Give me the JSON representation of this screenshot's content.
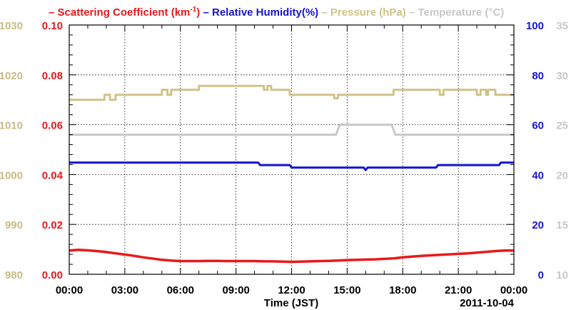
{
  "chart_data": {
    "type": "line",
    "legend": [
      {
        "key": "scat",
        "text": "Scattering Coefficient (km",
        "sup": "-1",
        "tail": ")",
        "color": "#e8191b"
      },
      {
        "key": "rh",
        "text": "Relative Humidity(%)",
        "color": "#1515d0"
      },
      {
        "key": "pres",
        "text": "Pressure (hPa)",
        "color": "#cfc38a"
      },
      {
        "key": "temp",
        "text": "Temperature (°C)",
        "color": "#c8c8c8"
      }
    ],
    "legend_dash": "–",
    "xlabel": "Time (JST)",
    "date_label": "2011-10-04",
    "x_ticks": [
      "00:00",
      "03:00",
      "06:00",
      "09:00",
      "12:00",
      "15:00",
      "18:00",
      "21:00",
      "00:00"
    ],
    "x_range_hours": [
      0,
      24
    ],
    "axes": {
      "pressure": {
        "range": [
          980,
          1030
        ],
        "ticks": [
          "980",
          "990",
          "1000",
          "1010",
          "1020",
          "1030"
        ],
        "color": "#c8bc84",
        "position": "outer-left"
      },
      "scattering": {
        "range": [
          0,
          0.1
        ],
        "ticks": [
          "0.00",
          "0.02",
          "0.04",
          "0.06",
          "0.08",
          "0.10"
        ],
        "color": "#e8191b",
        "position": "left"
      },
      "humidity": {
        "range": [
          0,
          100
        ],
        "ticks": [
          "0",
          "20",
          "40",
          "60",
          "80",
          "100"
        ],
        "color": "#1515d0",
        "position": "right"
      },
      "temperature": {
        "range": [
          10,
          35
        ],
        "ticks": [
          "10",
          "15",
          "20",
          "25",
          "30",
          "35"
        ],
        "color": "#c8c8c8",
        "position": "outer-right"
      }
    },
    "grid": true,
    "series": [
      {
        "name": "Pressure (hPa)",
        "axis": "pressure",
        "color": "#cfc38a",
        "points": [
          [
            0,
            1015
          ],
          [
            1.9,
            1015
          ],
          [
            1.9,
            1016
          ],
          [
            2.2,
            1016
          ],
          [
            2.2,
            1015
          ],
          [
            2.5,
            1015
          ],
          [
            2.5,
            1016
          ],
          [
            5.0,
            1016
          ],
          [
            5.0,
            1017
          ],
          [
            5.3,
            1017
          ],
          [
            5.3,
            1016
          ],
          [
            5.5,
            1016
          ],
          [
            5.5,
            1017
          ],
          [
            7.0,
            1017
          ],
          [
            7.0,
            1017.8
          ],
          [
            10.5,
            1017.8
          ],
          [
            10.5,
            1017
          ],
          [
            10.7,
            1017
          ],
          [
            10.7,
            1017.8
          ],
          [
            10.9,
            1017.8
          ],
          [
            10.9,
            1017
          ],
          [
            11.9,
            1017
          ],
          [
            11.9,
            1016
          ],
          [
            14.3,
            1016
          ],
          [
            14.3,
            1015.3
          ],
          [
            14.5,
            1015.3
          ],
          [
            14.5,
            1016
          ],
          [
            17.5,
            1016
          ],
          [
            17.5,
            1017
          ],
          [
            20.0,
            1017
          ],
          [
            20.0,
            1016
          ],
          [
            20.2,
            1016
          ],
          [
            20.2,
            1017
          ],
          [
            22.0,
            1017
          ],
          [
            22.0,
            1016
          ],
          [
            22.2,
            1016
          ],
          [
            22.2,
            1017
          ],
          [
            22.5,
            1017
          ],
          [
            22.5,
            1016
          ],
          [
            22.6,
            1016
          ],
          [
            22.6,
            1017
          ],
          [
            23.0,
            1017
          ],
          [
            23.0,
            1016
          ],
          [
            24,
            1016
          ]
        ]
      },
      {
        "name": "Temperature (°C)",
        "axis": "temperature",
        "color": "#c8c8c8",
        "points": [
          [
            0,
            24
          ],
          [
            14.4,
            24
          ],
          [
            14.6,
            25
          ],
          [
            17.4,
            25
          ],
          [
            17.6,
            24
          ],
          [
            24,
            24
          ]
        ]
      },
      {
        "name": "Relative Humidity(%)",
        "axis": "humidity",
        "color": "#1515d0",
        "points": [
          [
            0,
            44.8
          ],
          [
            10.2,
            44.8
          ],
          [
            10.3,
            43.8
          ],
          [
            11.9,
            43.8
          ],
          [
            12.0,
            42.8
          ],
          [
            15.9,
            42.8
          ],
          [
            16.0,
            41.8
          ],
          [
            16.1,
            42.8
          ],
          [
            19.8,
            42.8
          ],
          [
            19.9,
            43.8
          ],
          [
            23.2,
            43.8
          ],
          [
            23.3,
            44.8
          ],
          [
            24,
            44.8
          ]
        ]
      },
      {
        "name": "Scattering Coefficient",
        "axis": "scattering",
        "color": "#e8191b",
        "points": [
          [
            0,
            0.0095
          ],
          [
            0.5,
            0.0098
          ],
          [
            1,
            0.0096
          ],
          [
            1.5,
            0.0093
          ],
          [
            2,
            0.0089
          ],
          [
            2.5,
            0.0084
          ],
          [
            3,
            0.0079
          ],
          [
            3.5,
            0.0074
          ],
          [
            4,
            0.0068
          ],
          [
            4.5,
            0.0063
          ],
          [
            5,
            0.0058
          ],
          [
            5.5,
            0.0055
          ],
          [
            6,
            0.0053
          ],
          [
            6.5,
            0.0053
          ],
          [
            7,
            0.0053
          ],
          [
            7.5,
            0.0054
          ],
          [
            8,
            0.0054
          ],
          [
            8.5,
            0.0053
          ],
          [
            9,
            0.0053
          ],
          [
            9.5,
            0.0053
          ],
          [
            10,
            0.0053
          ],
          [
            10.5,
            0.0052
          ],
          [
            11,
            0.0052
          ],
          [
            11.5,
            0.0051
          ],
          [
            12,
            0.005
          ],
          [
            12.5,
            0.0051
          ],
          [
            13,
            0.0052
          ],
          [
            13.5,
            0.0053
          ],
          [
            14,
            0.0054
          ],
          [
            14.5,
            0.0055
          ],
          [
            15,
            0.0057
          ],
          [
            15.5,
            0.0058
          ],
          [
            16,
            0.0059
          ],
          [
            16.5,
            0.006
          ],
          [
            17,
            0.0062
          ],
          [
            17.5,
            0.0064
          ],
          [
            18,
            0.0068
          ],
          [
            18.5,
            0.0071
          ],
          [
            19,
            0.0074
          ],
          [
            19.5,
            0.0076
          ],
          [
            20,
            0.0078
          ],
          [
            20.5,
            0.008
          ],
          [
            21,
            0.0082
          ],
          [
            21.5,
            0.0084
          ],
          [
            22,
            0.0087
          ],
          [
            22.5,
            0.009
          ],
          [
            23,
            0.0093
          ],
          [
            23.5,
            0.0095
          ],
          [
            24,
            0.0095
          ]
        ]
      }
    ]
  }
}
